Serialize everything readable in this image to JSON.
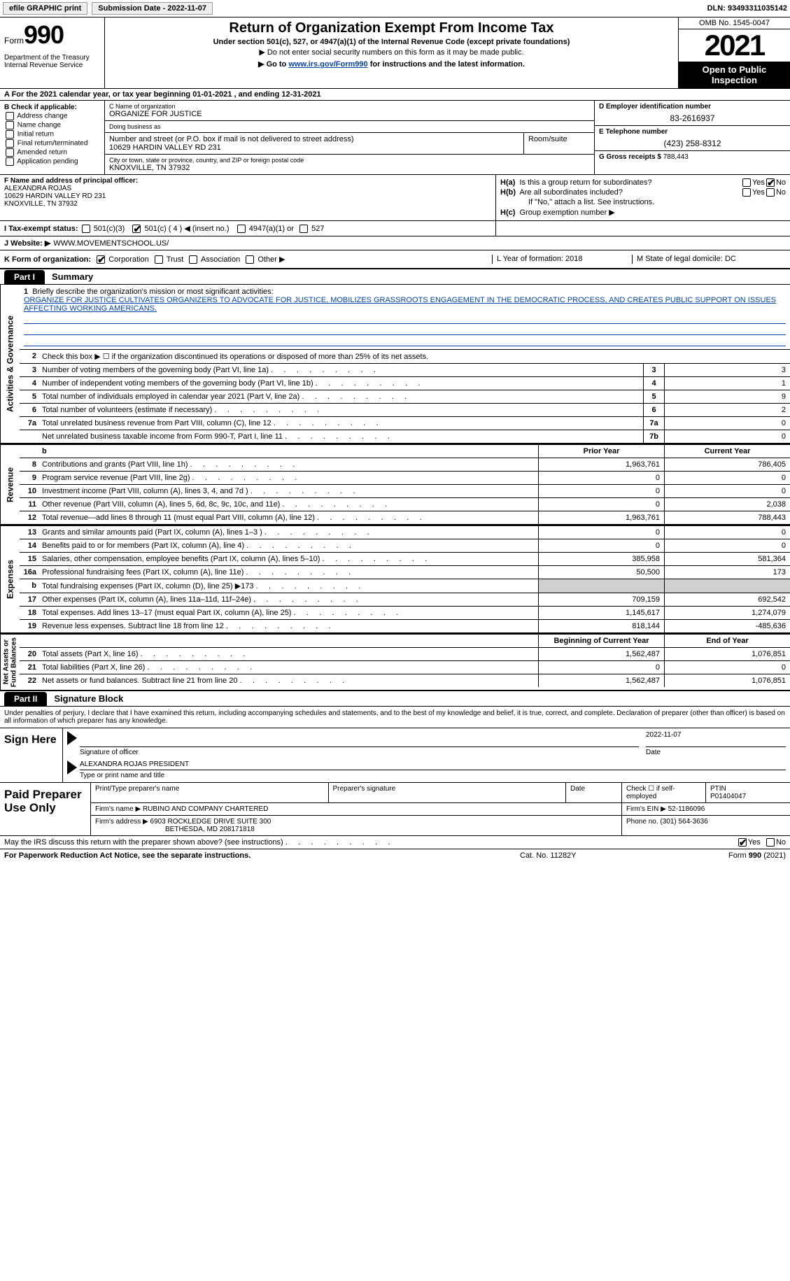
{
  "top": {
    "efile": "efile GRAPHIC print",
    "sub_label": "Submission Date - ",
    "sub_value": "2022-11-07",
    "dln_label": "DLN: ",
    "dln_value": "93493311035142"
  },
  "header": {
    "form_word": "Form",
    "form_num": "990",
    "dept": "Department of the Treasury\nInternal Revenue Service",
    "title": "Return of Organization Exempt From Income Tax",
    "sub": "Under section 501(c), 527, or 4947(a)(1) of the Internal Revenue Code (except private foundations)",
    "note1": "▶ Do not enter social security numbers on this form as it may be made public.",
    "note2_pre": "▶ Go to ",
    "note2_link": "www.irs.gov/Form990",
    "note2_post": " for instructions and the latest information.",
    "omb": "OMB No. 1545-0047",
    "year": "2021",
    "inspection": "Open to Public Inspection"
  },
  "rowA": "A For the 2021 calendar year, or tax year beginning 01-01-2021     , and ending 12-31-2021",
  "B": {
    "label": "B Check if applicable:",
    "opts": [
      "Address change",
      "Name change",
      "Initial return",
      "Final return/terminated",
      "Amended return",
      "Application pending"
    ]
  },
  "C": {
    "name_lbl": "C Name of organization",
    "name": "ORGANIZE FOR JUSTICE",
    "dba_lbl": "Doing business as",
    "dba": "",
    "street_lbl": "Number and street (or P.O. box if mail is not delivered to street address)",
    "street": "10629 HARDIN VALLEY RD 231",
    "room_lbl": "Room/suite",
    "city_lbl": "City or town, state or province, country, and ZIP or foreign postal code",
    "city": "KNOXVILLE, TN  37932"
  },
  "D": {
    "lbl": "D Employer identification number",
    "val": "83-2616937"
  },
  "E": {
    "lbl": "E Telephone number",
    "val": "(423) 258-8312"
  },
  "G": {
    "lbl": "G Gross receipts $ ",
    "val": "788,443"
  },
  "F": {
    "lbl": "F  Name and address of principal officer:",
    "line1": "ALEXANDRA ROJAS",
    "line2": "10629 HARDIN VALLEY RD 231",
    "line3": "KNOXVILLE, TN  37932"
  },
  "H": {
    "a_lbl": "H(a)  Is this a group return for subordinates?",
    "b_lbl": "H(b)  Are all subordinates included?",
    "b_note": "If \"No,\" attach a list. See instructions.",
    "c_lbl": "H(c)  Group exemption number ▶",
    "yes": "Yes",
    "no": "No"
  },
  "I": {
    "lbl": "I   Tax-exempt status:",
    "c3": "501(c)(3)",
    "c4": "501(c) ( 4 ) ◀ (insert no.)",
    "a1": "4947(a)(1) or",
    "s527": "527"
  },
  "J": {
    "lbl": "J   Website: ▶",
    "val": "  WWW.MOVEMENTSCHOOL.US/"
  },
  "K": {
    "lbl": "K Form of organization:",
    "opts": [
      "Corporation",
      "Trust",
      "Association",
      "Other ▶"
    ],
    "L": "L Year of formation: 2018",
    "M": "M State of legal domicile: DC"
  },
  "part1": {
    "tab": "Part I",
    "title": "Summary"
  },
  "side": {
    "ag": "Activities & Governance",
    "rev": "Revenue",
    "exp": "Expenses",
    "na": "Net Assets or\nFund Balances"
  },
  "summary": {
    "line1_lbl": "Briefly describe the organization's mission or most significant activities:",
    "line1_text": "ORGANIZE FOR JUSTICE CULTIVATES ORGANIZERS TO ADVOCATE FOR JUSTICE, MOBILIZES GRASSROOTS ENGAGEMENT IN THE DEMOCRATIC PROCESS, AND CREATES PUBLIC SUPPORT ON ISSUES AFFECTING WORKING AMERICANS.",
    "line2": "Check this box ▶ ☐  if the organization discontinued its operations or disposed of more than 25% of its net assets.",
    "rows_ag": [
      {
        "n": "3",
        "d": "Number of voting members of the governing body (Part VI, line 1a)",
        "box": "3",
        "v": "3"
      },
      {
        "n": "4",
        "d": "Number of independent voting members of the governing body (Part VI, line 1b)",
        "box": "4",
        "v": "1"
      },
      {
        "n": "5",
        "d": "Total number of individuals employed in calendar year 2021 (Part V, line 2a)",
        "box": "5",
        "v": "9"
      },
      {
        "n": "6",
        "d": "Total number of volunteers (estimate if necessary)",
        "box": "6",
        "v": "2"
      },
      {
        "n": "7a",
        "d": "Total unrelated business revenue from Part VIII, column (C), line 12",
        "box": "7a",
        "v": "0"
      },
      {
        "n": "",
        "d": "Net unrelated business taxable income from Form 990-T, Part I, line 11",
        "box": "7b",
        "v": "0"
      }
    ],
    "head_prior": "Prior Year",
    "head_curr": "Current Year",
    "rows_rev": [
      {
        "n": "8",
        "d": "Contributions and grants (Part VIII, line 1h)",
        "p": "1,963,761",
        "c": "786,405"
      },
      {
        "n": "9",
        "d": "Program service revenue (Part VIII, line 2g)",
        "p": "0",
        "c": "0"
      },
      {
        "n": "10",
        "d": "Investment income (Part VIII, column (A), lines 3, 4, and 7d )",
        "p": "0",
        "c": "0"
      },
      {
        "n": "11",
        "d": "Other revenue (Part VIII, column (A), lines 5, 6d, 8c, 9c, 10c, and 11e)",
        "p": "0",
        "c": "2,038"
      },
      {
        "n": "12",
        "d": "Total revenue—add lines 8 through 11 (must equal Part VIII, column (A), line 12)",
        "p": "1,963,761",
        "c": "788,443"
      }
    ],
    "rows_exp": [
      {
        "n": "13",
        "d": "Grants and similar amounts paid (Part IX, column (A), lines 1–3 )",
        "p": "0",
        "c": "0"
      },
      {
        "n": "14",
        "d": "Benefits paid to or for members (Part IX, column (A), line 4)",
        "p": "0",
        "c": "0"
      },
      {
        "n": "15",
        "d": "Salaries, other compensation, employee benefits (Part IX, column (A), lines 5–10)",
        "p": "385,958",
        "c": "581,364"
      },
      {
        "n": "16a",
        "d": "Professional fundraising fees (Part IX, column (A), line 11e)",
        "p": "50,500",
        "c": "173"
      },
      {
        "n": "b",
        "d": "Total fundraising expenses (Part IX, column (D), line 25) ▶173",
        "p": "",
        "c": "",
        "shade": true
      },
      {
        "n": "17",
        "d": "Other expenses (Part IX, column (A), lines 11a–11d, 11f–24e)",
        "p": "709,159",
        "c": "692,542"
      },
      {
        "n": "18",
        "d": "Total expenses. Add lines 13–17 (must equal Part IX, column (A), line 25)",
        "p": "1,145,617",
        "c": "1,274,079"
      },
      {
        "n": "19",
        "d": "Revenue less expenses. Subtract line 18 from line 12",
        "p": "818,144",
        "c": "-485,636"
      }
    ],
    "head_beg": "Beginning of Current Year",
    "head_end": "End of Year",
    "rows_na": [
      {
        "n": "20",
        "d": "Total assets (Part X, line 16)",
        "p": "1,562,487",
        "c": "1,076,851"
      },
      {
        "n": "21",
        "d": "Total liabilities (Part X, line 26)",
        "p": "0",
        "c": "0"
      },
      {
        "n": "22",
        "d": "Net assets or fund balances. Subtract line 21 from line 20",
        "p": "1,562,487",
        "c": "1,076,851"
      }
    ]
  },
  "part2": {
    "tab": "Part II",
    "title": "Signature Block"
  },
  "sig": {
    "text": "Under penalties of perjury, I declare that I have examined this return, including accompanying schedules and statements, and to the best of my knowledge and belief, it is true, correct, and complete. Declaration of preparer (other than officer) is based on all information of which preparer has any knowledge.",
    "sign_here": "Sign Here",
    "sig_of_officer": "Signature of officer",
    "date_lbl": "Date",
    "date_val": "2022-11-07",
    "name": "ALEXANDRA ROJAS PRESIDENT",
    "name_lbl": "Type or print name and title"
  },
  "prep": {
    "lbl": "Paid Preparer Use Only",
    "print_lbl": "Print/Type preparer's name",
    "sig_lbl": "Preparer's signature",
    "date_lbl": "Date",
    "check_lbl": "Check ☐ if self-employed",
    "ptin_lbl": "PTIN",
    "ptin": "P01404047",
    "firm_name_lbl": "Firm's name      ▶ ",
    "firm_name": "RUBINO AND COMPANY CHARTERED",
    "firm_ein_lbl": "Firm's EIN ▶ ",
    "firm_ein": "52-1186096",
    "firm_addr_lbl": "Firm's address ▶ ",
    "firm_addr1": "6903 ROCKLEDGE DRIVE SUITE 300",
    "firm_addr2": "BETHESDA, MD  208171818",
    "phone_lbl": "Phone no. ",
    "phone": "(301) 564-3636"
  },
  "discuss": {
    "text": "May the IRS discuss this return with the preparer shown above? (see instructions)",
    "yes": "Yes",
    "no": "No"
  },
  "footer": {
    "l": "For Paperwork Reduction Act Notice, see the separate instructions.",
    "m": "Cat. No. 11282Y",
    "r": "Form 990 (2021)"
  }
}
